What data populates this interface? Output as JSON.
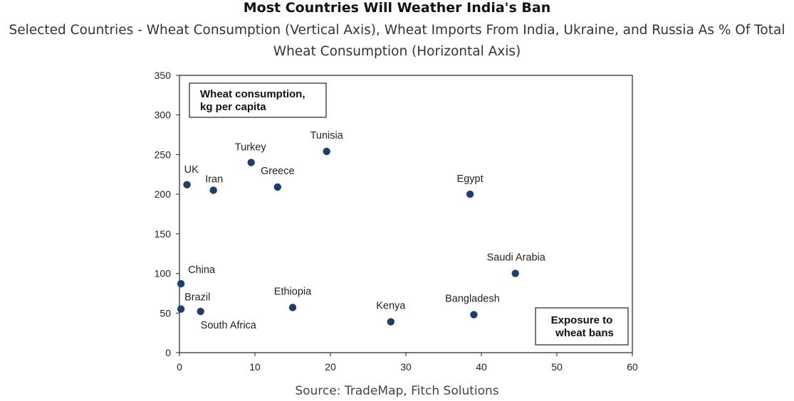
{
  "chart_data": {
    "type": "scatter",
    "title": "Most Countries Will Weather India's Ban",
    "subtitle_lines": [
      "Selected Countries - Wheat Consumption (Vertical Axis), Wheat Imports From India, Ukraine, and Russia As % Of Total",
      "Wheat Consumption (Horizontal Axis)"
    ],
    "source": "Source: TradeMap, Fitch Solutions",
    "y_annotation_lines": [
      "Wheat consumption,",
      "kg per capita"
    ],
    "x_annotation_lines": [
      "Exposure to",
      "wheat bans"
    ],
    "xlim": [
      0,
      60
    ],
    "ylim": [
      0,
      350
    ],
    "x_ticks": [
      0,
      10,
      20,
      30,
      40,
      50,
      60
    ],
    "y_ticks": [
      0,
      50,
      100,
      150,
      200,
      250,
      300,
      350
    ],
    "marker_color": "#1c3f6e",
    "points": [
      {
        "label": "UK",
        "x": 1,
        "y": 212
      },
      {
        "label": "Iran",
        "x": 4.5,
        "y": 205
      },
      {
        "label": "Turkey",
        "x": 9.5,
        "y": 240
      },
      {
        "label": "Greece",
        "x": 13,
        "y": 209
      },
      {
        "label": "Tunisia",
        "x": 19.5,
        "y": 254
      },
      {
        "label": "Egypt",
        "x": 38.5,
        "y": 200
      },
      {
        "label": "China",
        "x": 0.2,
        "y": 87
      },
      {
        "label": "Brazil",
        "x": 0.2,
        "y": 55
      },
      {
        "label": "South Africa",
        "x": 2.8,
        "y": 52
      },
      {
        "label": "Ethiopia",
        "x": 15,
        "y": 57
      },
      {
        "label": "Kenya",
        "x": 28,
        "y": 39
      },
      {
        "label": "Bangladesh",
        "x": 39,
        "y": 48
      },
      {
        "label": "Saudi Arabia",
        "x": 44.5,
        "y": 100
      }
    ]
  }
}
